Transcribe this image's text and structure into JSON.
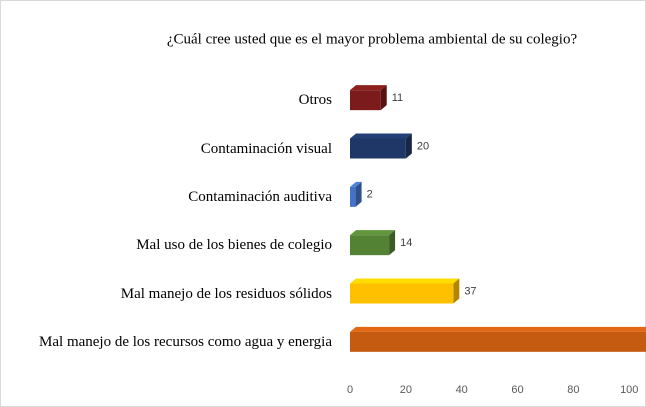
{
  "chart_data": {
    "type": "bar",
    "orientation": "horizontal",
    "title": "¿Cuál cree usted que es el mayor problema ambiental  de su colegio?",
    "categories": [
      "Otros",
      "Contaminación visual",
      "Contaminación auditiva",
      "Mal uso de los bienes de colegio",
      "Mal manejo de los residuos sólidos",
      "Mal manejo de los recursos como agua y energia"
    ],
    "values": [
      11,
      20,
      2,
      14,
      37,
      106
    ],
    "value_labels": [
      "11",
      "20",
      "2",
      "14",
      "37",
      null
    ],
    "colors": [
      "#7b1b1b",
      "#1f3767",
      "#4472c4",
      "#548235",
      "#ffc000",
      "#c55a11"
    ],
    "xlim": [
      0,
      106
    ],
    "xticks": [
      0,
      20,
      40,
      60,
      80,
      100
    ],
    "grid": false
  }
}
